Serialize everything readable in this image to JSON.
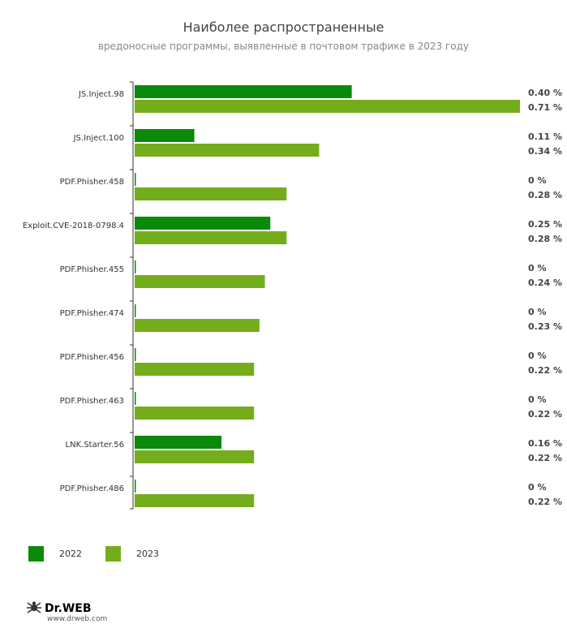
{
  "chart_data": {
    "type": "bar",
    "orientation": "horizontal",
    "title": "Наиболее распространенные",
    "subtitle": "вредоносные программы, выявленные в почтовом трафике в 2023 году",
    "categories": [
      "JS.Inject.98",
      "JS.Inject.100",
      "PDF.Phisher.458",
      "Exploit.CVE-2018-0798.4",
      "PDF.Phisher.455",
      "PDF.Phisher.474",
      "PDF.Phisher.456",
      "PDF.Phisher.463",
      "LNK.Starter.56",
      "PDF.Phisher.486"
    ],
    "series": [
      {
        "name": "2022",
        "color": "#0a8a0a",
        "values": [
          0.4,
          0.11,
          0,
          0.25,
          0,
          0,
          0,
          0,
          0.16,
          0
        ],
        "labels": [
          "0.40 %",
          "0.11 %",
          "0 %",
          "0.25 %",
          "0 %",
          "0 %",
          "0 %",
          "0 %",
          "0.16 %",
          "0 %"
        ]
      },
      {
        "name": "2023",
        "color": "#74ad1b",
        "values": [
          0.71,
          0.34,
          0.28,
          0.28,
          0.24,
          0.23,
          0.22,
          0.22,
          0.22,
          0.22
        ],
        "labels": [
          "0.71 %",
          "0.34 %",
          "0.28 %",
          "0.28 %",
          "0.24 %",
          "0.23 %",
          "0.22 %",
          "0.22 %",
          "0.22 %",
          "0.22 %"
        ]
      }
    ],
    "xlim": [
      0,
      0.71
    ],
    "legend_position": "bottom-left"
  },
  "legend": {
    "label_2022": "2022",
    "label_2023": "2023"
  },
  "brand": {
    "logo": "Dr.WEB",
    "site": "www.drweb.com"
  }
}
